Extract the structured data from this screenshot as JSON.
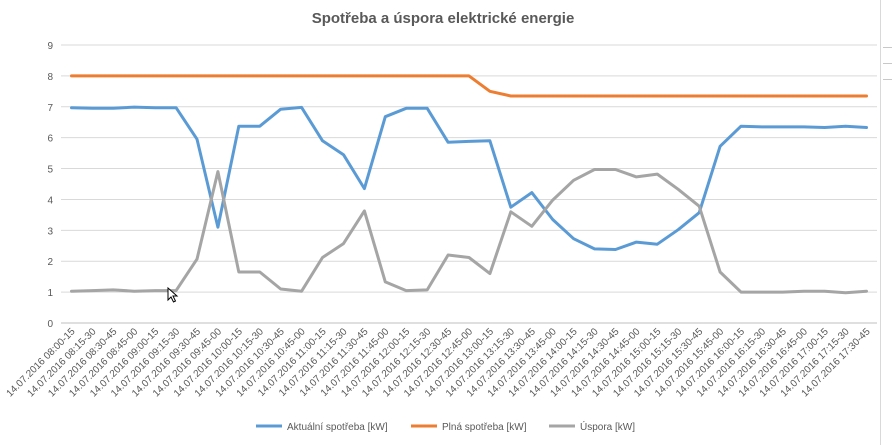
{
  "chart_data": {
    "type": "line",
    "title": "Spotřeba a úspora elektrické energie",
    "xlabel": "",
    "ylabel": "",
    "ylim": [
      0,
      9
    ],
    "yticks": [
      0,
      1,
      2,
      3,
      4,
      5,
      6,
      7,
      8,
      9
    ],
    "grid": true,
    "legend_position": "bottom",
    "categories": [
      "14.07.2016 08:00-15",
      "14.07.2016 08:15-30",
      "14.07.2016 08:30-45",
      "14.07.2016 08:45-00",
      "14.07.2016 09:00-15",
      "14.07.2016 09:15-30",
      "14.07.2016 09:30-45",
      "14.07.2016 09:45-00",
      "14.07.2016 10:00-15",
      "14.07.2016 10:15-30",
      "14.07.2016 10:30-45",
      "14.07.2016 10:45-00",
      "14.07.2016 11:00-15",
      "14.07.2016 11:15-30",
      "14.07.2016 11:30-45",
      "14.07.2016 11:45-00",
      "14.07.2016 12:00-15",
      "14.07.2016 12:15-30",
      "14.07.2016 12:30-45",
      "14.07.2016 12:45-00",
      "14.07.2016 13:00-15",
      "14.07.2016 13:15-30",
      "14.07.2016 13:30-45",
      "14.07.2016 13:45-00",
      "14.07.2016 14:00-15",
      "14.07.2016 14:15-30",
      "14.07.2016 14:30-45",
      "14.07.2016 14:45-00",
      "14.07.2016 15:00-15",
      "14.07.2016 15:15-30",
      "14.07.2016 15:30-45",
      "14.07.2016 15:45-00",
      "14.07.2016 16:00-15",
      "14.07.2016 16:15-30",
      "14.07.2016 16:30-45",
      "14.07.2016 16:45-00",
      "14.07.2016 17:00-15",
      "14.07.2016 17:15-30",
      "14.07.2016 17:30-45"
    ],
    "series": [
      {
        "name": "Aktuální spotřeba [kW]",
        "color": "#5b9bd5",
        "values": [
          6.97,
          6.95,
          6.95,
          6.99,
          6.97,
          6.97,
          5.95,
          3.1,
          6.37,
          6.37,
          6.92,
          6.98,
          5.9,
          5.45,
          4.35,
          6.68,
          6.95,
          6.95,
          5.85,
          5.88,
          5.9,
          3.75,
          4.22,
          3.35,
          2.73,
          2.4,
          2.38,
          2.62,
          2.55,
          3.02,
          3.57,
          5.72,
          6.37,
          6.35,
          6.35,
          6.35,
          6.33,
          6.37,
          6.33
        ]
      },
      {
        "name": "Plná spotřeba [kW]",
        "color": "#ed7d31",
        "values": [
          8.0,
          8.0,
          8.0,
          8.0,
          8.0,
          8.0,
          8.0,
          8.0,
          8.0,
          8.0,
          8.0,
          8.0,
          8.0,
          8.0,
          8.0,
          8.0,
          8.0,
          8.0,
          8.0,
          8.0,
          7.5,
          7.35,
          7.35,
          7.35,
          7.35,
          7.35,
          7.35,
          7.35,
          7.35,
          7.35,
          7.35,
          7.35,
          7.35,
          7.35,
          7.35,
          7.35,
          7.35,
          7.35,
          7.35
        ]
      },
      {
        "name": "Úspora [kW]",
        "color": "#a5a5a5",
        "values": [
          1.03,
          1.05,
          1.07,
          1.03,
          1.05,
          1.05,
          2.07,
          4.9,
          1.65,
          1.65,
          1.1,
          1.03,
          2.12,
          2.57,
          3.63,
          1.33,
          1.05,
          1.07,
          2.2,
          2.12,
          1.6,
          3.6,
          3.13,
          3.98,
          4.62,
          4.97,
          4.97,
          4.73,
          4.82,
          4.33,
          3.78,
          1.65,
          1.0,
          1.0,
          1.0,
          1.03,
          1.03,
          0.98,
          1.03
        ]
      }
    ]
  }
}
